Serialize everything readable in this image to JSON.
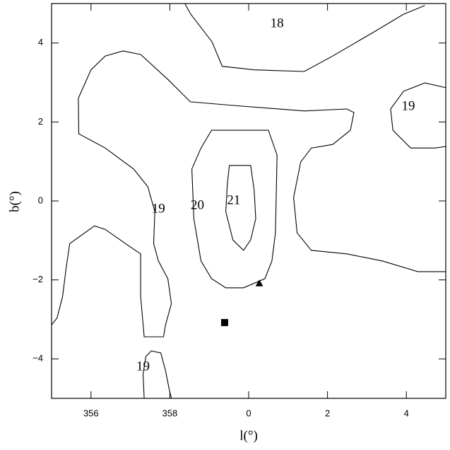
{
  "chart_data": {
    "type": "contour",
    "xlabel": "l(°)",
    "ylabel": "b(°)",
    "xlim": [
      -5,
      5
    ],
    "ylim": [
      -5,
      5
    ],
    "xticks": [
      {
        "value": -4,
        "label": "356"
      },
      {
        "value": -2,
        "label": "358"
      },
      0,
      2,
      4
    ],
    "yticks": [
      {
        "value": -4,
        "label": "−4"
      },
      {
        "value": -2,
        "label": "−2"
      },
      0,
      2,
      4
    ],
    "color": "#000000",
    "contours": [
      {
        "x": [
          -1.62,
          -1.47,
          -0.93,
          -0.67,
          0.14,
          1.41,
          2.13,
          3.21,
          3.93,
          4.47
        ],
        "y": [
          5,
          4.73,
          4.03,
          3.41,
          3.32,
          3.28,
          3.67,
          4.3,
          4.73,
          4.95
        ]
      },
      {
        "x": [
          -5,
          -4.86,
          -4.72,
          -4.63,
          -4.54,
          -3.91,
          -3.64,
          -3.01,
          -2.74,
          -2.74,
          -2.65,
          -2.16,
          -2.11,
          -1.96,
          -2.05,
          -2.29,
          -2.41,
          -2.38,
          -2.56,
          -2.92,
          -3.64,
          -4.31,
          -4.32,
          -4.0,
          -3.64,
          -3.19,
          -2.74,
          -2.02,
          -1.48,
          -0.4,
          1.41,
          2.49,
          2.67,
          2.58,
          2.13,
          1.59,
          1.32,
          1.14,
          1.23,
          1.59,
          2.49,
          3.39,
          4.29,
          5
        ],
        "y": [
          -3.14,
          -2.96,
          -2.42,
          -1.7,
          -1.08,
          -0.63,
          -0.72,
          -1.16,
          -1.34,
          -2.42,
          -3.44,
          -3.44,
          -3.14,
          -2.6,
          -1.97,
          -1.52,
          -1.08,
          -0.27,
          0.36,
          0.81,
          1.34,
          1.7,
          2.6,
          3.32,
          3.67,
          3.8,
          3.71,
          3.05,
          2.51,
          2.42,
          2.28,
          2.33,
          2.24,
          1.79,
          1.43,
          1.34,
          0.99,
          0.09,
          -0.81,
          -1.25,
          -1.34,
          -1.52,
          -1.79,
          -1.79
        ]
      },
      {
        "x": [
          5,
          4.47,
          3.93,
          3.6,
          3.66,
          4.11,
          4.74,
          5
        ],
        "y": [
          2.87,
          2.99,
          2.78,
          2.33,
          1.79,
          1.34,
          1.34,
          1.38
        ]
      },
      {
        "x": [
          -0.94,
          0.5,
          0.72,
          0.68,
          0.59,
          0.41,
          -0.13,
          -0.58,
          -0.94,
          -1.21,
          -1.39,
          -1.44,
          -1.21,
          -0.94
        ],
        "y": [
          1.79,
          1.79,
          1.16,
          -0.81,
          -1.52,
          -1.97,
          -2.2,
          -2.2,
          -1.97,
          -1.52,
          -0.45,
          0.81,
          1.34,
          1.79
        ]
      },
      {
        "x": [
          -0.49,
          0.05,
          0.14,
          0.18,
          0.05,
          -0.13,
          -0.4,
          -0.58,
          -0.54,
          -0.49
        ],
        "y": [
          0.9,
          0.9,
          0.27,
          -0.45,
          -0.99,
          -1.25,
          -0.99,
          -0.27,
          0.45,
          0.9
        ]
      },
      {
        "x": [
          -2.65,
          -2.68,
          -2.61,
          -2.47,
          -2.23,
          -2.11,
          -2.02,
          -1.96
        ],
        "y": [
          -5,
          -4.39,
          -3.94,
          -3.8,
          -3.85,
          -4.3,
          -4.75,
          -5
        ]
      }
    ],
    "annotations": [
      {
        "text": "18",
        "x": 0.72,
        "y": 4.48
      },
      {
        "text": "19",
        "x": 4.05,
        "y": 2.38
      },
      {
        "text": "21",
        "x": -0.38,
        "y": 0
      },
      {
        "text": "20",
        "x": -1.3,
        "y": -0.13
      },
      {
        "text": "19",
        "x": -2.29,
        "y": -0.22
      },
      {
        "text": "19",
        "x": -2.68,
        "y": -4.21
      }
    ],
    "markers": [
      {
        "shape": "triangle",
        "x": 0.27,
        "y": -2.08
      },
      {
        "shape": "square",
        "x": -0.61,
        "y": -3.08
      }
    ]
  }
}
